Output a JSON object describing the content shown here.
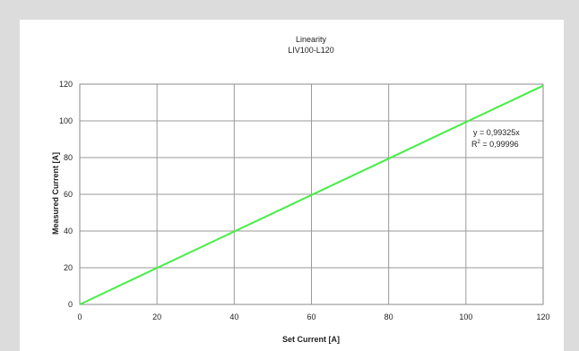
{
  "chart_data": {
    "type": "line",
    "title": "Linearity",
    "subtitle": "LIV100-L120",
    "xlabel": "Set Current [A]",
    "ylabel": "Measured Current [A]",
    "xlim": [
      0,
      120
    ],
    "ylim": [
      0,
      120
    ],
    "xticks": [
      0,
      20,
      40,
      60,
      80,
      100,
      120
    ],
    "yticks": [
      0,
      20,
      40,
      60,
      80,
      100,
      120
    ],
    "grid": true,
    "series": [
      {
        "color": "#44ee44",
        "x": [
          0,
          120
        ],
        "y": [
          0,
          119.19
        ]
      }
    ],
    "annotations": {
      "equation": "y = 0,99325x",
      "r_squared_label": "R",
      "r_squared_sup": "2",
      "r_squared_value": " = 0,99996"
    }
  }
}
